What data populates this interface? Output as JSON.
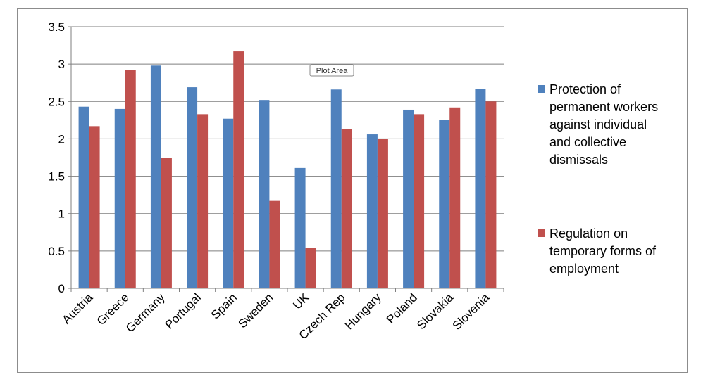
{
  "tooltip": "Plot Area",
  "chart_data": {
    "type": "bar",
    "categories": [
      "Austria",
      "Greece",
      "Germany",
      "Portugal",
      "Spain",
      "Sweden",
      "UK",
      "Czech Rep",
      "Hungary",
      "Poland",
      "Slovakia",
      "Slovenia"
    ],
    "series": [
      {
        "name": "Protection of permanent workers against individual and collective dismissals",
        "name_lines": [
          "Protection of",
          "permanent workers",
          "against individual",
          "and collective",
          "dismissals"
        ],
        "color": "#4f81bd",
        "values": [
          2.43,
          2.4,
          2.98,
          2.69,
          2.27,
          2.52,
          1.61,
          2.66,
          2.06,
          2.39,
          2.25,
          2.67
        ]
      },
      {
        "name": "Regulation on temporary forms of employment",
        "name_lines": [
          "Regulation on",
          "temporary forms of",
          "employment"
        ],
        "color": "#c0504d",
        "values": [
          2.17,
          2.92,
          1.75,
          2.33,
          3.17,
          1.17,
          0.54,
          2.13,
          2.0,
          2.33,
          2.42,
          2.5
        ]
      }
    ],
    "yticks": [
      "0",
      "0.5",
      "1",
      "1.5",
      "2",
      "2.5",
      "3",
      "3.5"
    ],
    "ylim": [
      0,
      3.5
    ],
    "grid": true,
    "legend_position": "right",
    "title": "",
    "xlabel": "",
    "ylabel": ""
  }
}
